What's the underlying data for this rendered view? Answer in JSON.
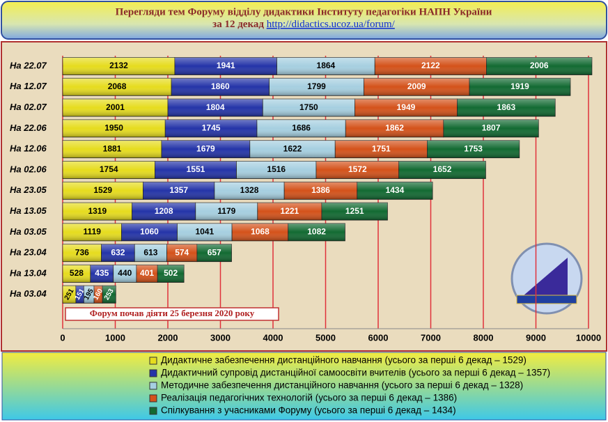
{
  "chart_data": {
    "type": "stacked_bar_horizontal",
    "title": "Перегляди тем Форуму відділу дидактики Інституту педагогіки НАПН України",
    "subtitle": "за 12 декад",
    "url": "http://didactics.ucoz.ua/forum/",
    "annotation": "Форум почав діяти 25 березня 2020 року",
    "categories": [
      "На 22.07",
      "На 12.07",
      "На 02.07",
      "На 22.06",
      "На 12.06",
      "На 02.06",
      "На 23.05",
      "На 13.05",
      "На 03.05",
      "На 23.04",
      "На 13.04",
      "На 03.04"
    ],
    "series": [
      {
        "name": "Дидактичне забезпечення дистанційного навчання (усього за перші 6 декад – 1529)",
        "color": "#e6dc1e",
        "text_color": "#000000",
        "values": [
          2132,
          2068,
          2001,
          1950,
          1881,
          1754,
          1529,
          1319,
          1119,
          736,
          528,
          251
        ]
      },
      {
        "name": "Дидактичний супровід дистанційної самоосвіти вчителів  (усього за перші 6 декад – 1357)",
        "color": "#2434a8",
        "text_color": "#ffffff",
        "values": [
          1941,
          1860,
          1804,
          1745,
          1679,
          1551,
          1357,
          1208,
          1060,
          632,
          435,
          151
        ]
      },
      {
        "name": "Методичне забезпечення дистанційного навчання  (усього  за перші 6 декад – 1328)",
        "color": "#a6cfe0",
        "text_color": "#000000",
        "values": [
          1864,
          1799,
          1750,
          1686,
          1622,
          1516,
          1328,
          1179,
          1041,
          613,
          440,
          195
        ]
      },
      {
        "name": "Реалізація педагогічних технологій  (усього за перші 6 декад – 1386)",
        "color": "#d4521a",
        "text_color": "#ffffff",
        "values": [
          2122,
          2009,
          1949,
          1862,
          1751,
          1572,
          1386,
          1221,
          1068,
          574,
          401,
          160
        ]
      },
      {
        "name": "Спілкування з учасниками Форуму  (усього  за перші 6 декад – 1434)",
        "color": "#126a32",
        "text_color": "#ffffff",
        "values": [
          2006,
          1919,
          1863,
          1807,
          1753,
          1652,
          1434,
          1251,
          1082,
          657,
          502,
          253
        ]
      }
    ],
    "xlim": [
      0,
      10000
    ],
    "xticks": [
      0,
      1000,
      2000,
      3000,
      4000,
      5000,
      6000,
      7000,
      8000,
      9000,
      10000
    ],
    "grid": true,
    "grid_color": "#e0303a"
  }
}
